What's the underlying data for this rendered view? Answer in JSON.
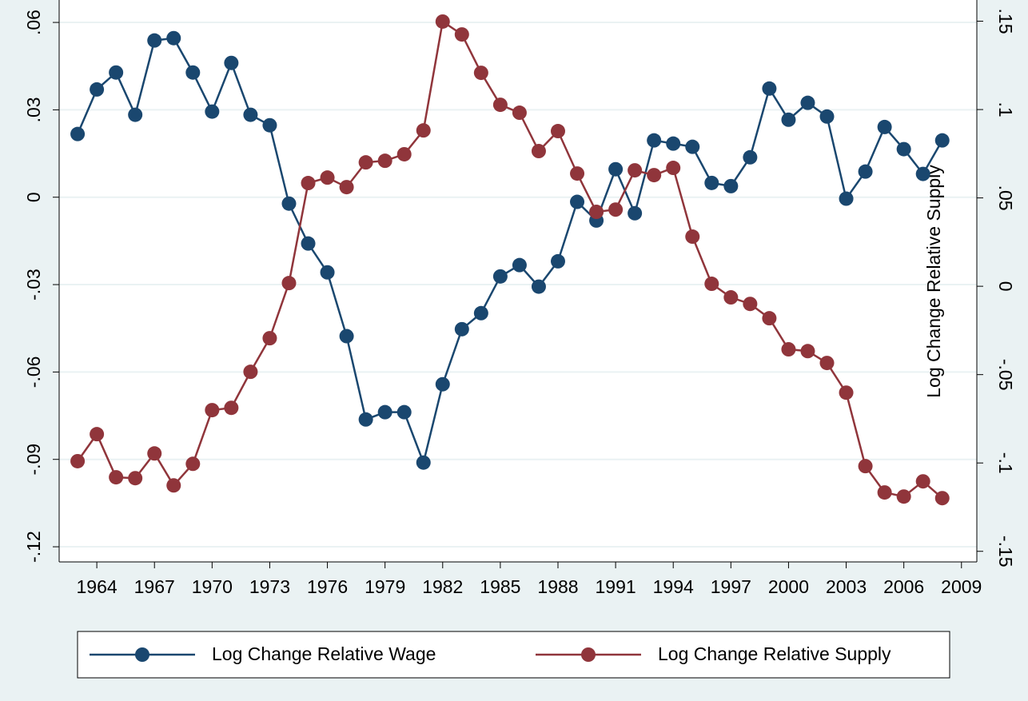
{
  "chart_data": {
    "type": "line",
    "y2label": "Log Change Relative Supply",
    "x": [
      1963,
      1964,
      1965,
      1966,
      1967,
      1968,
      1969,
      1970,
      1971,
      1972,
      1973,
      1974,
      1975,
      1976,
      1977,
      1978,
      1979,
      1980,
      1981,
      1982,
      1983,
      1984,
      1985,
      1986,
      1987,
      1988,
      1989,
      1990,
      1991,
      1992,
      1993,
      1994,
      1995,
      1996,
      1997,
      1998,
      1999,
      2000,
      2001,
      2002,
      2003,
      2004,
      2005,
      2006,
      2007,
      2008
    ],
    "series": [
      {
        "name": "Log Change Relative Wage",
        "color": "#1a476f",
        "axis": "y",
        "values": [
          0.0217,
          0.037,
          0.0428,
          0.0283,
          0.0538,
          0.0546,
          0.0428,
          0.0294,
          0.0461,
          0.0283,
          0.0247,
          -0.0022,
          -0.0159,
          -0.0258,
          -0.0477,
          -0.0763,
          -0.0738,
          -0.0738,
          -0.0911,
          -0.0642,
          -0.0453,
          -0.0398,
          -0.0272,
          -0.0233,
          -0.0307,
          -0.022,
          -0.0016,
          -0.008,
          0.0096,
          -0.0055,
          0.0195,
          0.0184,
          0.0173,
          0.0049,
          0.0038,
          0.0137,
          0.0373,
          0.0266,
          0.0324,
          0.0277,
          -0.0005,
          0.0088,
          0.0241,
          0.0165,
          0.008,
          0.0195
        ]
      },
      {
        "name": "Log Change Relative Supply",
        "color": "#90353b",
        "axis": "y2",
        "values": [
          -0.099,
          -0.0837,
          -0.1081,
          -0.1086,
          -0.0946,
          -0.1127,
          -0.1005,
          -0.0701,
          -0.0688,
          -0.0484,
          -0.0294,
          0.0018,
          0.0584,
          0.0615,
          0.0561,
          0.0701,
          0.071,
          0.0747,
          0.0882,
          0.1498,
          0.1425,
          0.1208,
          0.1027,
          0.0982,
          0.0765,
          0.0878,
          0.0638,
          0.0421,
          0.0434,
          0.0656,
          0.0629,
          0.067,
          0.0281,
          0.0014,
          -0.0063,
          -0.01,
          -0.0181,
          -0.0357,
          -0.0367,
          -0.0434,
          -0.0602,
          -0.1018,
          -0.1167,
          -0.119,
          -0.1104,
          -0.1199
        ]
      }
    ],
    "xlim": [
      1962.04,
      2009.8
    ],
    "xticks": [
      1964,
      1967,
      1970,
      1973,
      1976,
      1979,
      1982,
      1985,
      1988,
      1991,
      1994,
      1997,
      2000,
      2003,
      2006,
      2009
    ],
    "ylim": [
      -0.1252,
      0.0677
    ],
    "yticks": [
      {
        "value": -0.12,
        "label": "-.12"
      },
      {
        "value": -0.09,
        "label": "-.09"
      },
      {
        "value": -0.06,
        "label": "-.06"
      },
      {
        "value": -0.03,
        "label": "-.03"
      },
      0,
      {
        "value": 0.03,
        "label": ".03"
      },
      {
        "value": 0.06,
        "label": ".06"
      }
    ],
    "y2lim": [
      -0.156,
      0.162
    ],
    "y2ticks": [
      {
        "value": -0.15,
        "label": "-.15"
      },
      {
        "value": -0.1,
        "label": "-.1"
      },
      {
        "value": -0.05,
        "label": "-.05"
      },
      0,
      {
        "value": 0.05,
        "label": ".05"
      },
      {
        "value": 0.1,
        "label": ".1"
      },
      {
        "value": 0.15,
        "label": ".15"
      }
    ],
    "grid": true,
    "legend": "bottom"
  }
}
